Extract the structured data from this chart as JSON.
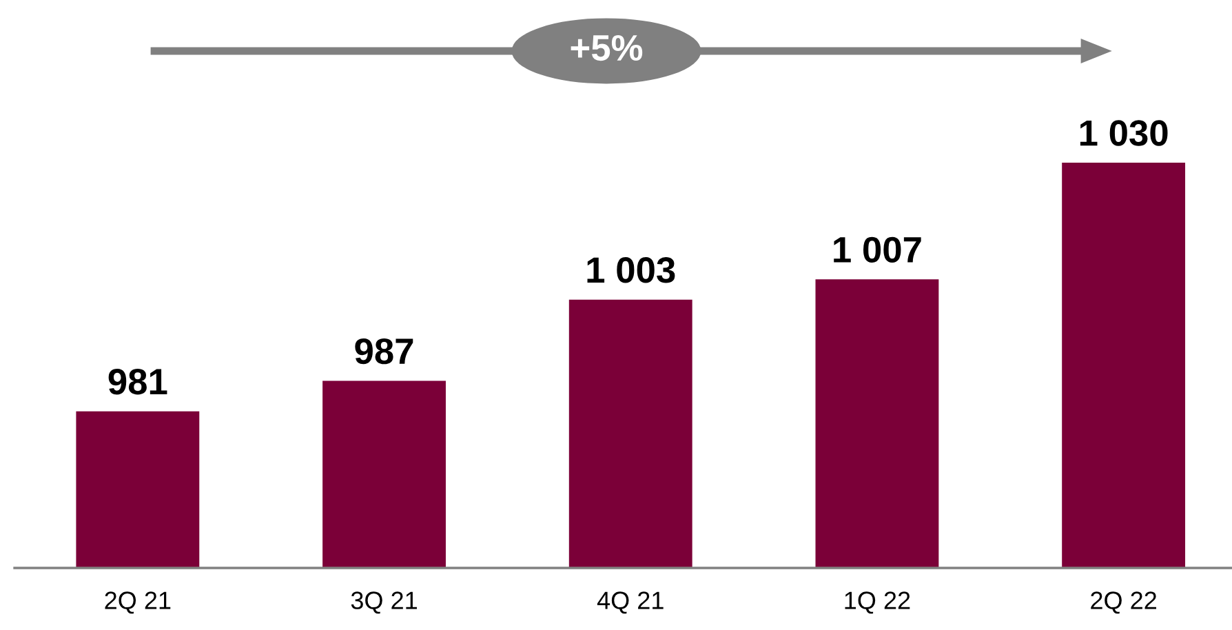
{
  "chart_data": {
    "type": "bar",
    "categories": [
      "2Q 21",
      "3Q 21",
      "4Q 21",
      "1Q 22",
      "2Q 22"
    ],
    "values": [
      981,
      987,
      1003,
      1007,
      1030
    ],
    "value_labels": [
      "981",
      "987",
      "1 003",
      "1 007",
      "1 030"
    ],
    "color": "#7b0038",
    "tick_labels": "x",
    "grid": false,
    "annotations": [
      "+5%"
    ]
  }
}
